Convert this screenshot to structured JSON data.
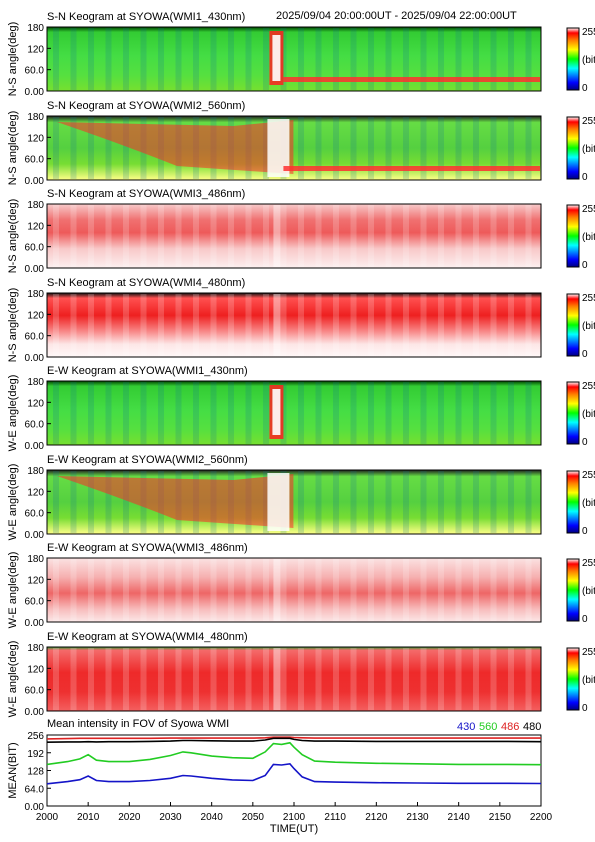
{
  "header": {
    "time_range": "2025/09/04 20:00:00UT - 2025/09/04 22:00:00UT"
  },
  "colorbar": {
    "max_label": "255",
    "unit_label": "(bit)",
    "min_label": "0"
  },
  "keograms": [
    {
      "title": "S-N Keogram at SYOWA(WMI1_430nm)",
      "ylabel": "N-S angle(deg)",
      "style": "green",
      "ticks": [
        "180",
        "120",
        "60.0",
        "0.00"
      ]
    },
    {
      "title": "S-N Keogram at SYOWA(WMI2_560nm)",
      "ylabel": "N-S angle(deg)",
      "style": "hot",
      "ticks": [
        "180",
        "120",
        "60.0",
        "0.00"
      ]
    },
    {
      "title": "S-N Keogram at SYOWA(WMI3_486nm)",
      "ylabel": "N-S angle(deg)",
      "style": "pinkband",
      "ticks": [
        "180",
        "120",
        "60.0",
        "0.00"
      ]
    },
    {
      "title": "S-N Keogram at SYOWA(WMI4_480nm)",
      "ylabel": "N-S angle(deg)",
      "style": "redband",
      "ticks": [
        "180",
        "120",
        "60.0",
        "0.00"
      ]
    },
    {
      "title": "E-W Keogram at SYOWA(WMI1_430nm)",
      "ylabel": "W-E angle(deg)",
      "style": "green",
      "ticks": [
        "180",
        "120",
        "60.0",
        "0.00"
      ]
    },
    {
      "title": "E-W Keogram at SYOWA(WMI2_560nm)",
      "ylabel": "W-E angle(deg)",
      "style": "hot",
      "ticks": [
        "180",
        "120",
        "60.0",
        "0.00"
      ]
    },
    {
      "title": "E-W Keogram at SYOWA(WMI3_486nm)",
      "ylabel": "W-E angle(deg)",
      "style": "pinkband",
      "ticks": [
        "180",
        "120",
        "60.0",
        "0.00"
      ]
    },
    {
      "title": "E-W Keogram at SYOWA(WMI4_480nm)",
      "ylabel": "W-E angle(deg)",
      "style": "redband",
      "ticks": [
        "180",
        "120",
        "60.0",
        "0.00"
      ]
    }
  ],
  "colors": {
    "line_430": "#1414c8",
    "line_560": "#22cc22",
    "line_486": "#dd2222",
    "line_480": "#000000"
  },
  "chart_data": {
    "type": "line",
    "title": "Mean intensity in FOV of Syowa WMI",
    "ylabel": "MEAN(BIT)",
    "xlabel": "TIME(UT)",
    "xlim": [
      "2000",
      "2200"
    ],
    "ylim": [
      0,
      256
    ],
    "x_ticks": [
      "2000",
      "2010",
      "2020",
      "2030",
      "2040",
      "2050",
      "2100",
      "2110",
      "2120",
      "2130",
      "2140",
      "2150",
      "2200"
    ],
    "y_ticks": [
      "256",
      "192",
      "128",
      "64.0",
      "0.00"
    ],
    "x": [
      "2000",
      "2005",
      "2008",
      "2010",
      "2012",
      "2015",
      "2020",
      "2025",
      "2030",
      "2033",
      "2035",
      "2040",
      "2045",
      "2050",
      "2053",
      "2055",
      "2057",
      "2059",
      "2100",
      "2102",
      "2105",
      "2110",
      "2120",
      "2130",
      "2140",
      "2150",
      "2200"
    ],
    "series": [
      {
        "name": "430",
        "color": "#1414c8",
        "values": [
          80,
          88,
          95,
          108,
          92,
          88,
          88,
          92,
          100,
          110,
          108,
          100,
          94,
          92,
          110,
          150,
          148,
          152,
          135,
          105,
          88,
          86,
          84,
          83,
          82,
          82,
          81
        ]
      },
      {
        "name": "560",
        "color": "#22cc22",
        "values": [
          150,
          160,
          170,
          185,
          165,
          160,
          160,
          168,
          182,
          195,
          192,
          180,
          174,
          172,
          195,
          225,
          222,
          228,
          212,
          185,
          162,
          158,
          154,
          152,
          150,
          150,
          149
        ]
      },
      {
        "name": "486",
        "color": "#dd2222",
        "values": [
          242,
          243,
          244,
          244,
          244,
          244,
          244,
          244,
          245,
          245,
          245,
          245,
          245,
          245,
          246,
          248,
          248,
          248,
          247,
          246,
          245,
          245,
          245,
          245,
          245,
          245,
          245
        ]
      },
      {
        "name": "480",
        "color": "#000000",
        "values": [
          230,
          231,
          231,
          232,
          231,
          232,
          232,
          233,
          234,
          236,
          236,
          235,
          234,
          234,
          238,
          244,
          244,
          244,
          240,
          236,
          234,
          234,
          233,
          233,
          233,
          233,
          232
        ]
      }
    ]
  }
}
